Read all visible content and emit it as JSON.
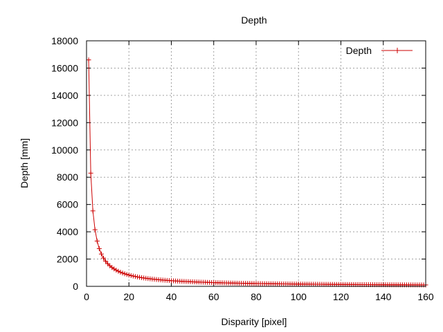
{
  "chart_data": {
    "type": "line",
    "title": "Depth",
    "xlabel": "Disparity [pixel]",
    "ylabel": "Depth [mm]",
    "xlim": [
      0,
      160
    ],
    "ylim": [
      0,
      18000
    ],
    "x_ticks": [
      0,
      20,
      40,
      60,
      80,
      100,
      120,
      140,
      160
    ],
    "y_ticks": [
      0,
      2000,
      4000,
      6000,
      8000,
      10000,
      12000,
      14000,
      16000,
      18000
    ],
    "grid": true,
    "legend_position": "top-right",
    "marker": "plus",
    "colors": {
      "series": "#cc0000",
      "grid": "#a0a0a0",
      "axes": "#000000"
    },
    "series": [
      {
        "name": "Depth",
        "x_start": 1,
        "x_end": 160,
        "x_step": 1,
        "y_at_x1": 16600,
        "values": [
          16600,
          8300,
          5533,
          4150,
          3320,
          2767,
          2371,
          2075,
          1844,
          1660,
          1509,
          1383,
          1277,
          1186,
          1107,
          1038,
          976,
          922,
          874,
          830,
          790,
          755,
          722,
          692,
          664,
          638,
          615,
          593,
          572,
          553,
          535,
          519,
          503,
          488,
          474,
          461,
          449,
          437,
          426,
          415,
          405,
          395,
          386,
          377,
          369,
          361,
          353,
          346,
          339,
          332,
          325,
          319,
          313,
          307,
          302,
          296,
          291,
          286,
          281,
          277,
          272,
          268,
          263,
          259,
          255,
          252,
          248,
          244,
          241,
          237,
          234,
          231,
          227,
          224,
          221,
          218,
          216,
          213,
          210,
          208,
          205,
          202,
          200,
          198,
          195,
          193,
          191,
          189,
          187,
          184,
          182,
          180,
          178,
          177,
          175,
          173,
          171,
          169,
          168,
          166,
          164,
          163,
          161,
          160,
          158,
          157,
          155,
          154,
          152,
          151,
          150,
          148,
          147,
          146,
          144,
          143,
          142,
          141,
          139,
          138,
          137,
          136,
          135,
          134,
          133,
          132,
          131,
          130,
          129,
          128,
          127,
          126,
          125,
          124,
          123,
          122,
          121,
          120,
          119,
          119,
          118,
          117,
          116,
          115,
          114,
          114,
          113,
          112,
          111,
          111,
          110,
          109,
          108,
          108,
          107,
          106,
          106,
          105,
          104,
          104
        ]
      }
    ]
  }
}
